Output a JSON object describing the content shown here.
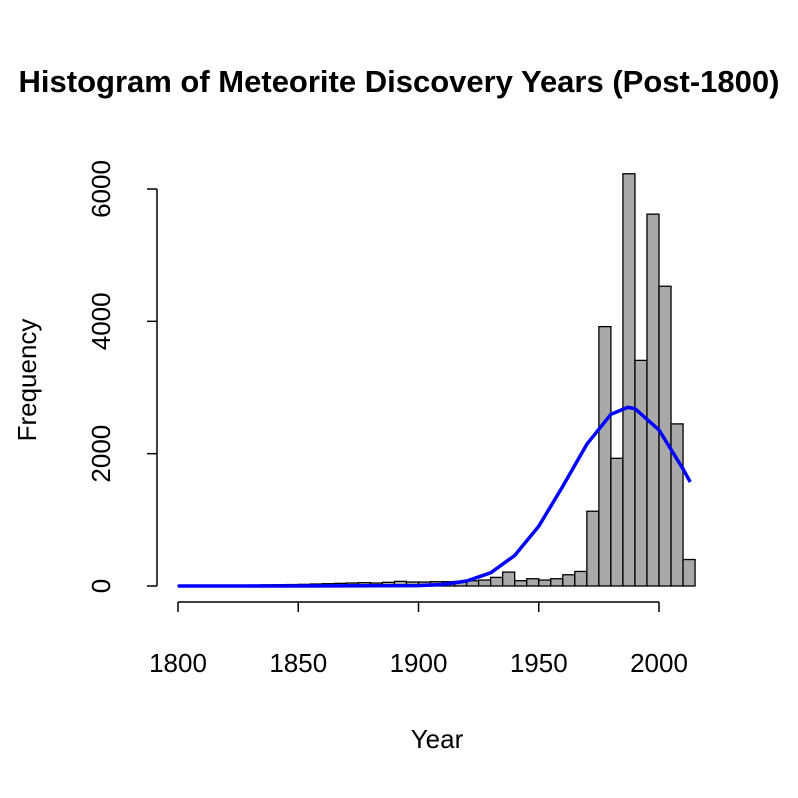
{
  "chart_data": {
    "type": "histogram",
    "title": "Histogram of Meteorite Discovery Years (Post-1800)",
    "x_label": "Year",
    "y_label": "Frequency",
    "bins": [
      1800,
      1805,
      1810,
      1815,
      1820,
      1825,
      1830,
      1835,
      1840,
      1845,
      1850,
      1855,
      1860,
      1865,
      1870,
      1875,
      1880,
      1885,
      1890,
      1895,
      1900,
      1905,
      1910,
      1915,
      1920,
      1925,
      1930,
      1935,
      1940,
      1945,
      1950,
      1955,
      1960,
      1965,
      1970,
      1975,
      1980,
      1985,
      1990,
      1995,
      2000,
      2005,
      2010,
      2015
    ],
    "values": [
      5,
      5,
      8,
      10,
      10,
      12,
      15,
      18,
      20,
      22,
      25,
      30,
      35,
      40,
      45,
      50,
      45,
      55,
      70,
      60,
      60,
      65,
      65,
      70,
      80,
      90,
      130,
      210,
      80,
      110,
      90,
      110,
      170,
      220,
      1130,
      3920,
      1930,
      6230,
      3410,
      5620,
      4530,
      2450,
      400
    ],
    "color": "#a9a9a9",
    "curve": {
      "type": "line",
      "color": "#0000ff",
      "x": [
        1800,
        1850,
        1900,
        1910,
        1920,
        1930,
        1940,
        1950,
        1960,
        1970,
        1980,
        1987,
        1990,
        2000,
        2010,
        2013
      ],
      "values": [
        0,
        0,
        5,
        23,
        75,
        200,
        461,
        903,
        1507,
        2143,
        2595,
        2700,
        2681,
        2358,
        1769,
        1572
      ]
    },
    "xlim": [
      1800,
      2000
    ],
    "xticks": [
      1800,
      1850,
      1900,
      1950,
      2000
    ],
    "ylim": [
      0,
      6000
    ],
    "yticks": [
      0,
      2000,
      4000,
      6000
    ]
  }
}
